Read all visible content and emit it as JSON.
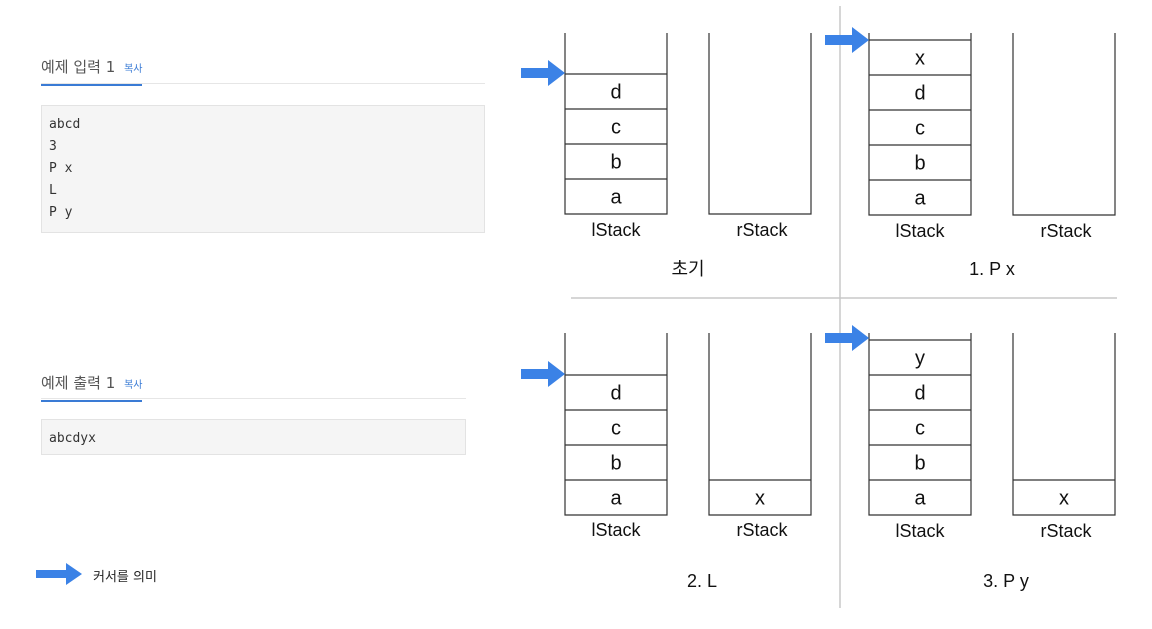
{
  "sample_input": {
    "title": "예제 입력 1",
    "copy_label": "복사",
    "lines": [
      "abcd",
      "3",
      "P x",
      "L",
      "P y"
    ]
  },
  "sample_output": {
    "title": "예제 출력 1",
    "copy_label": "복사",
    "lines": [
      "abcdyx"
    ]
  },
  "legend": {
    "label": "커서를 의미",
    "icon": "arrow-right-icon"
  },
  "colors": {
    "accent": "#3a7bd5",
    "arrow": "#3b82e6"
  },
  "panels": [
    {
      "caption": "초기",
      "left_label": "lStack",
      "right_label": "rStack",
      "left_stack": [
        "a",
        "b",
        "c",
        "d"
      ],
      "right_stack": []
    },
    {
      "caption": "1. P x",
      "left_label": "lStack",
      "right_label": "rStack",
      "left_stack": [
        "a",
        "b",
        "c",
        "d",
        "x"
      ],
      "right_stack": []
    },
    {
      "caption": "2. L",
      "left_label": "lStack",
      "right_label": "rStack",
      "left_stack": [
        "a",
        "b",
        "c",
        "d"
      ],
      "right_stack": [
        "x"
      ]
    },
    {
      "caption": "3. P y",
      "left_label": "lStack",
      "right_label": "rStack",
      "left_stack": [
        "a",
        "b",
        "c",
        "d",
        "y"
      ],
      "right_stack": [
        "x"
      ]
    }
  ]
}
